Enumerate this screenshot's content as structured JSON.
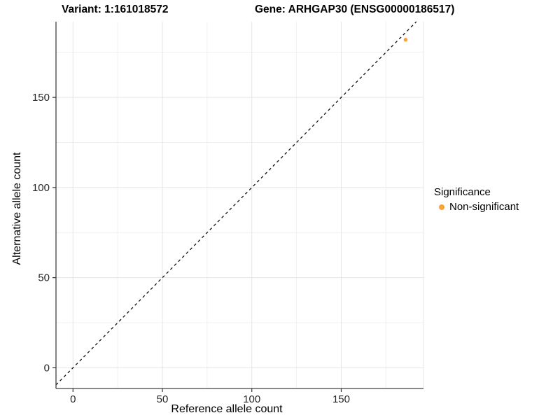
{
  "chart_data": {
    "type": "scatter",
    "title_left": "Variant: 1:161018572",
    "title_right": "Gene: ARHGAP30 (ENSG00000186517)",
    "xlabel": "Reference allele count",
    "ylabel": "Alternative allele count",
    "xlim": [
      -9.5,
      196
    ],
    "ylim": [
      -11.5,
      192
    ],
    "x_ticks": [
      0,
      50,
      100,
      150
    ],
    "y_ticks": [
      0,
      50,
      100,
      150
    ],
    "x_minor_ticks": [
      25,
      75,
      125,
      175
    ],
    "y_minor_ticks": [
      25,
      75,
      125,
      175
    ],
    "grid": true,
    "points": [
      {
        "x": 186,
        "y": 182,
        "series": "Non-significant"
      }
    ],
    "identity_line": {
      "slope": 1,
      "intercept": 0,
      "style": "dashed"
    },
    "legend": {
      "title": "Significance",
      "position": "right",
      "items": [
        {
          "label": "Non-significant",
          "color": "#F8A339"
        }
      ]
    },
    "colors": {
      "point": "#F8A339",
      "axis_line": "#404040",
      "tick_mark": "#333333",
      "grid_major": "#E5E5E5",
      "grid_minor": "#F0F0F0",
      "dashed_line": "#111111",
      "background": "#FFFFFF"
    }
  }
}
